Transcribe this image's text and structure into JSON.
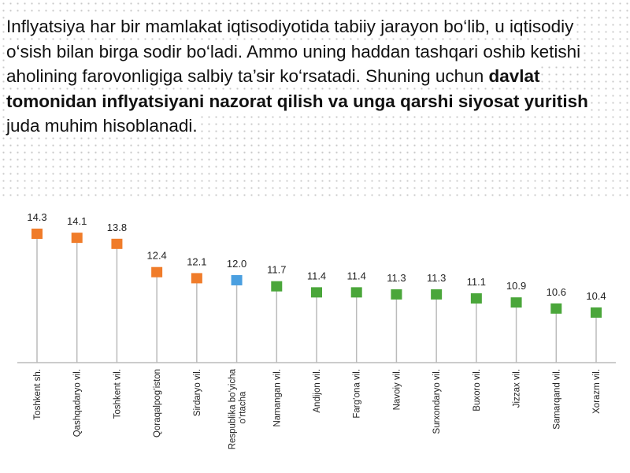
{
  "paragraph": [
    {
      "text": "Inflyatsiya har bir mamlakat iqtisodiyotida tabiiy jarayon bo‘lib, u iqtisodiy o‘sish bilan birga sodir bo‘ladi. Ammo uning haddan tashqari oshib ketishi aholining farovonligiga salbiy ta’sir ko‘rsatadi. Shuning uchun ",
      "bold": false
    },
    {
      "text": "davlat tomonidan inflyatsiyani nazorat qilish va unga qarshi siyosat yuritish",
      "bold": true
    },
    {
      "text": " juda muhim hisoblanadi.",
      "bold": false
    }
  ],
  "chart_data": {
    "type": "lollipop",
    "categories": [
      "Toshkent sh.",
      "Qashqadaryo vil.",
      "Toshkent vil.",
      "Qoraqalpog‘iston",
      "Sirdaryo vil.",
      "Respublika bo‘yicha o‘rtacha",
      "Namangan vil.",
      "Andijon vil.",
      "Farg‘ona vil.",
      "Navoiy vil.",
      "Surxondaryo vil.",
      "Buxoro vil.",
      "Jizzax vil.",
      "Samarqand vil.",
      "Xorazm vil."
    ],
    "values": [
      14.3,
      14.1,
      13.8,
      12.4,
      12.1,
      12.0,
      11.7,
      11.4,
      11.4,
      11.3,
      11.3,
      11.1,
      10.9,
      10.6,
      10.4
    ],
    "value_labels": [
      "14.3",
      "14.1",
      "13.8",
      "12.4",
      "12.1",
      "12.0",
      "11.7",
      "11.4",
      "11.4",
      "11.3",
      "11.3",
      "11.1",
      "10.9",
      "10.6",
      "10.4"
    ],
    "colors": [
      "#f07c2a",
      "#f07c2a",
      "#f07c2a",
      "#f07c2a",
      "#f07c2a",
      "#4a9fe0",
      "#4aa63a",
      "#4aa63a",
      "#4aa63a",
      "#4aa63a",
      "#4aa63a",
      "#4aa63a",
      "#4aa63a",
      "#4aa63a",
      "#4aa63a"
    ]
  }
}
